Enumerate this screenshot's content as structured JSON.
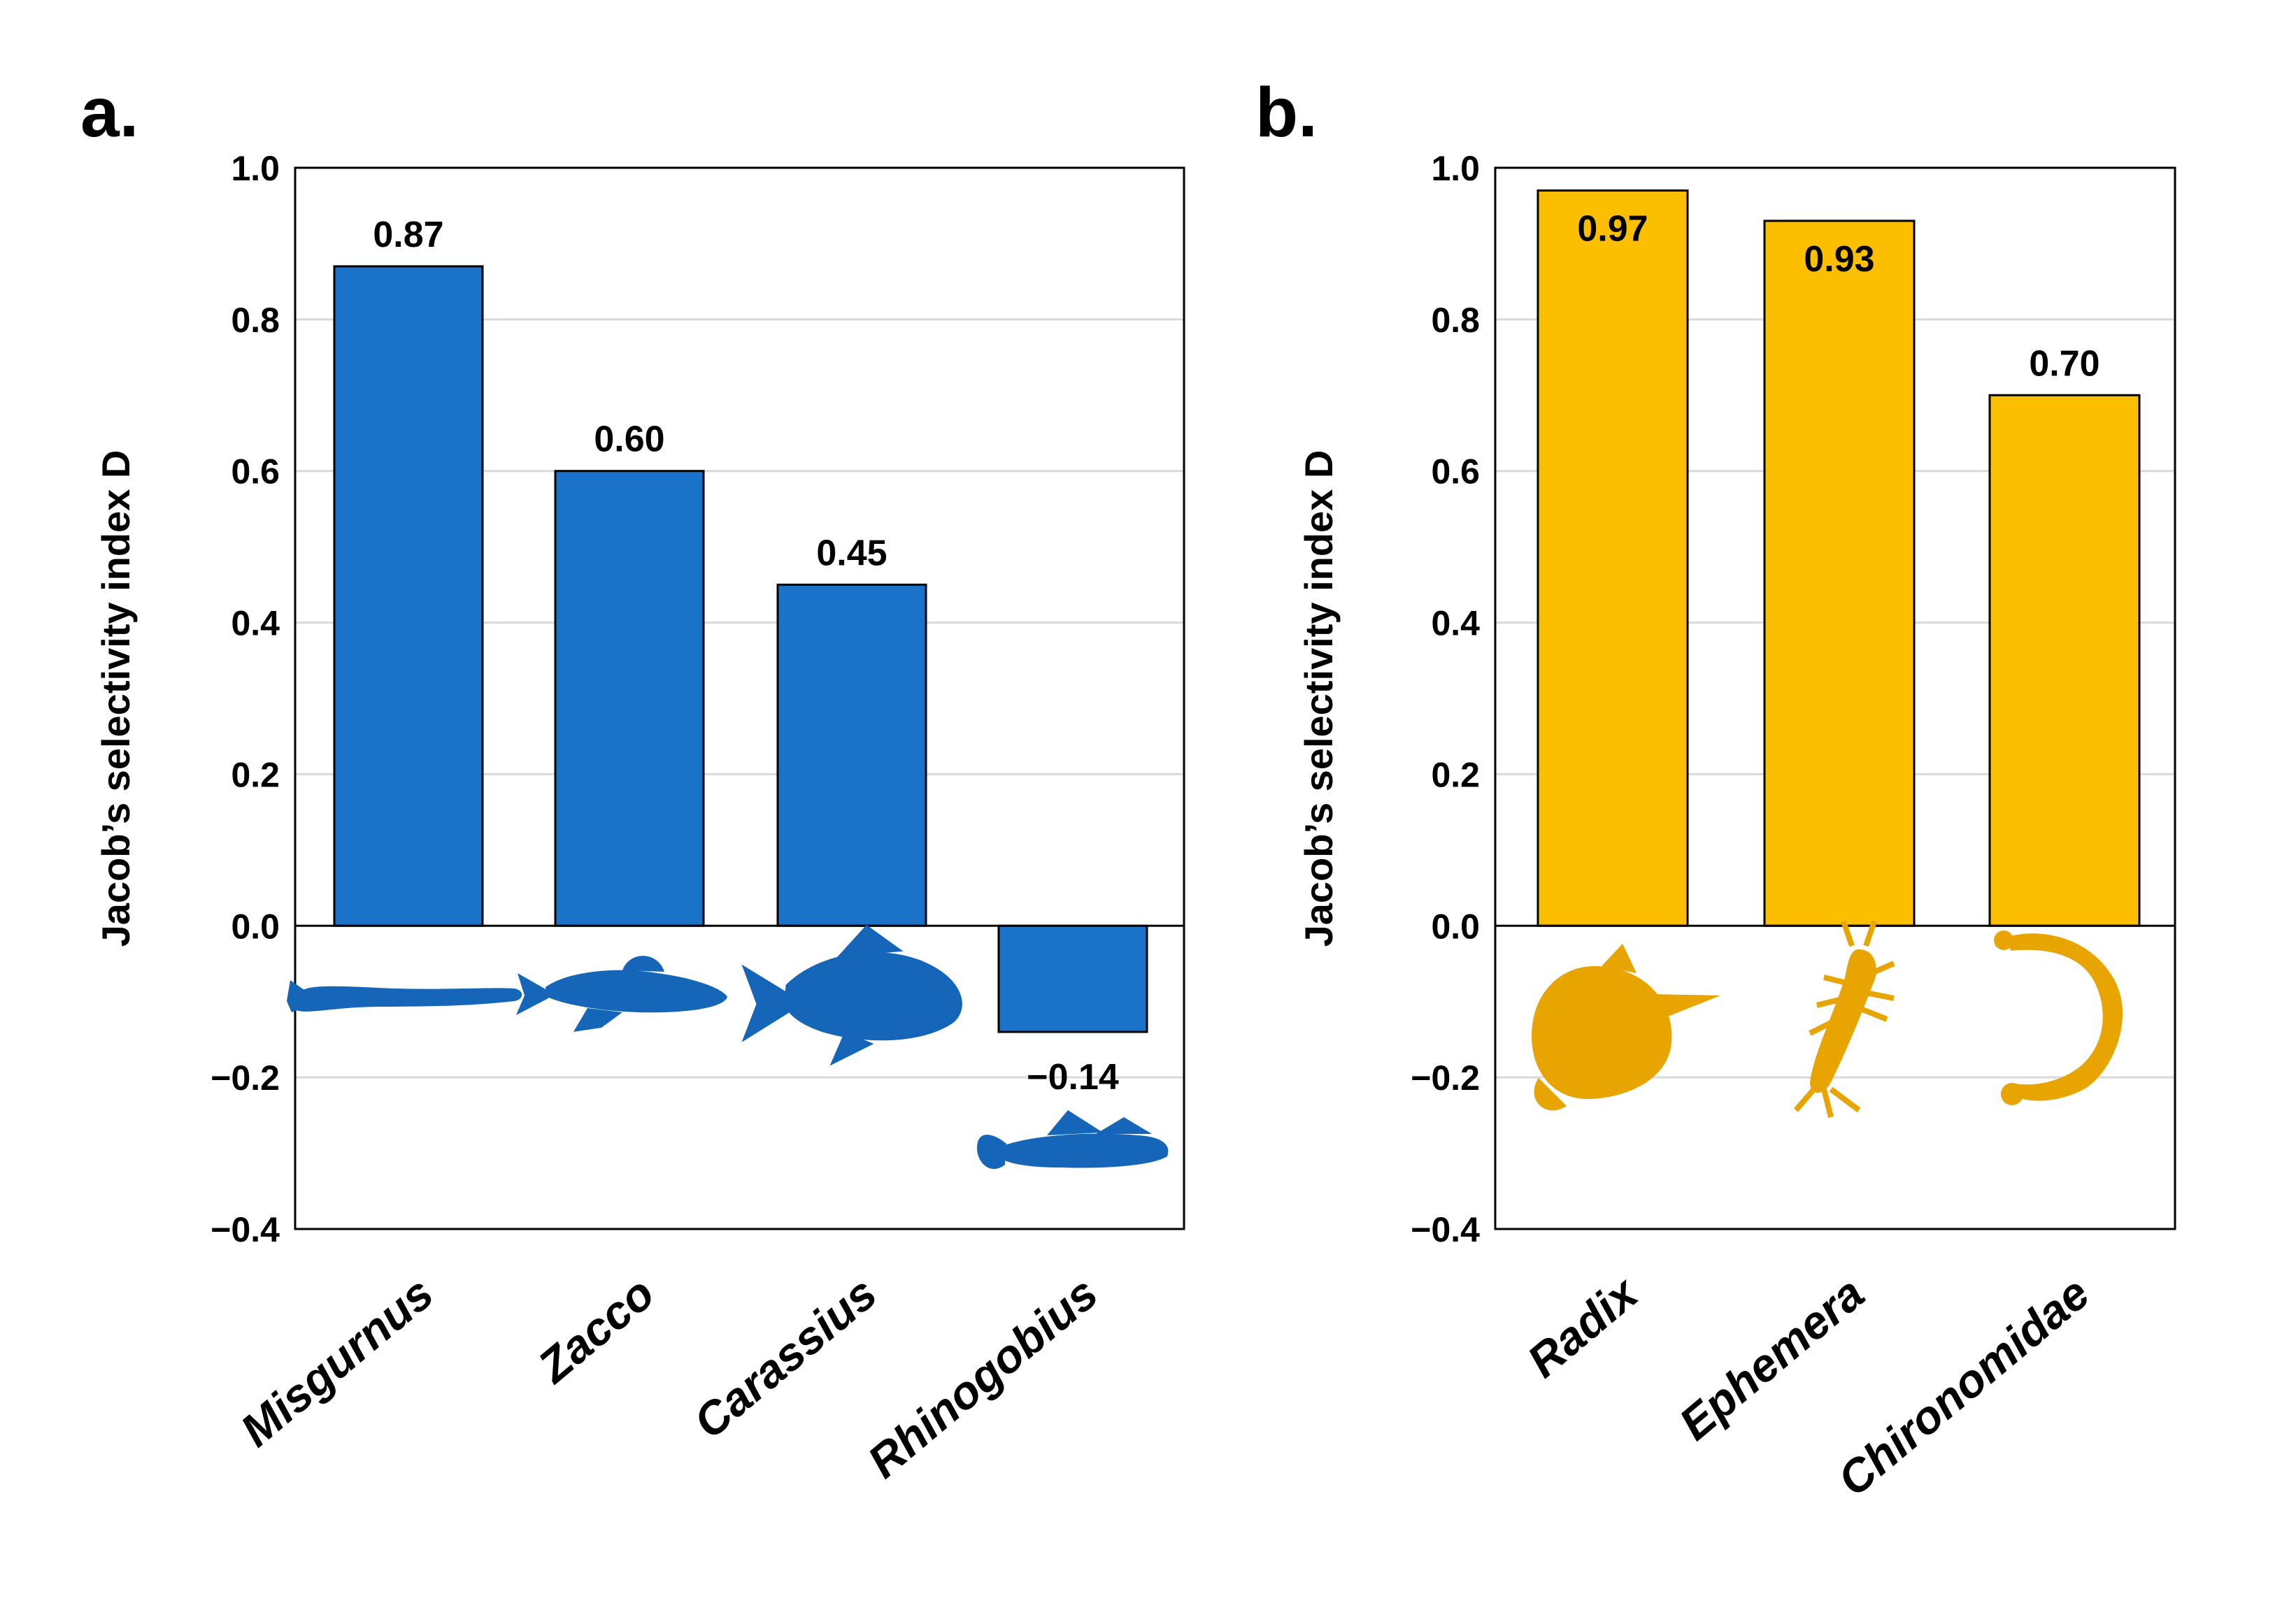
{
  "chart_data": [
    {
      "type": "bar",
      "panel_label": "a.",
      "ylabel": "Jacob’s selectivity index D",
      "ylim": [
        -0.4,
        1.0
      ],
      "yticks": [
        -0.4,
        -0.2,
        0.0,
        0.2,
        0.4,
        0.6,
        0.8,
        1.0
      ],
      "ytick_labels": [
        "−0.4",
        "−0.2",
        "0.0",
        "0.2",
        "0.4",
        "0.6",
        "0.8",
        "1.0"
      ],
      "grid": true,
      "categories": [
        "Misgurnus",
        "Zacco",
        "Carassius",
        "Rhinogobius"
      ],
      "values": [
        0.87,
        0.6,
        0.45,
        -0.14
      ],
      "value_labels": [
        "0.87",
        "0.60",
        "0.45",
        "−0.14"
      ],
      "bar_color": "#1a73c9",
      "icon_color": "#1565b8",
      "icons": [
        "loach-silhouette-icon",
        "minnow-silhouette-icon",
        "crucian-carp-silhouette-icon",
        "goby-silhouette-icon"
      ]
    },
    {
      "type": "bar",
      "panel_label": "b.",
      "ylabel": "Jacob’s selectivity index D",
      "ylim": [
        -0.4,
        1.0
      ],
      "yticks": [
        -0.4,
        -0.2,
        0.0,
        0.2,
        0.4,
        0.6,
        0.8,
        1.0
      ],
      "ytick_labels": [
        "−0.4",
        "−0.2",
        "0.0",
        "0.2",
        "0.4",
        "0.6",
        "0.8",
        "1.0"
      ],
      "grid": true,
      "categories": [
        "Radix",
        "Ephemera",
        "Chironomidae"
      ],
      "values": [
        0.97,
        0.93,
        0.7
      ],
      "value_labels": [
        "0.97",
        "0.93",
        "0.70"
      ],
      "bar_color": "#fcbf00",
      "icon_color": "#e8a400",
      "icons": [
        "snail-silhouette-icon",
        "mayfly-larva-silhouette-icon",
        "midge-larva-silhouette-icon"
      ]
    }
  ]
}
